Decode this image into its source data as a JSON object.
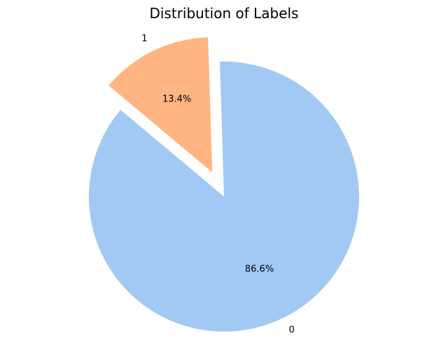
{
  "chart_data": {
    "type": "pie",
    "title": "Distribution of Labels",
    "labels": [
      "0",
      "1"
    ],
    "values": [
      86.6,
      13.4
    ],
    "percent_labels": [
      "86.6%",
      "13.4%"
    ],
    "colors": [
      "#a1c9f4",
      "#ffb482"
    ],
    "explode": [
      0,
      0.2
    ],
    "start_angle_deg": 140
  }
}
